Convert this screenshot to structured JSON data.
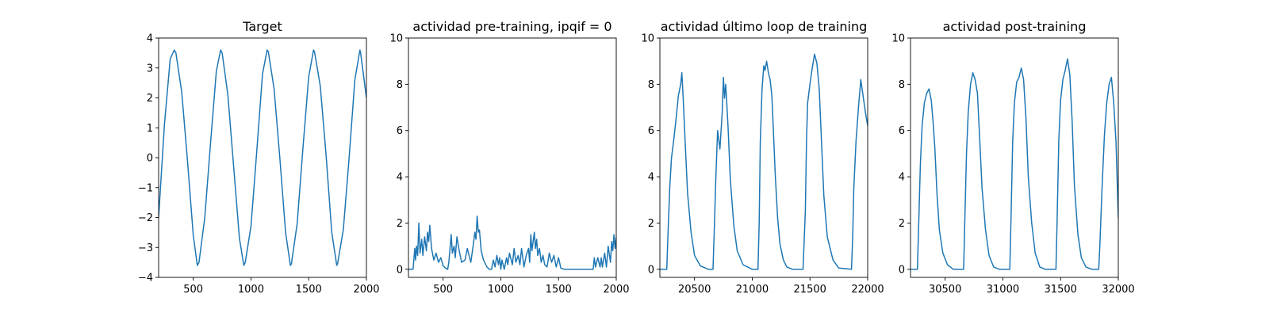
{
  "figure": {
    "background": "#ffffff",
    "line_color": "#1f77b4"
  },
  "chart_data": [
    {
      "type": "line",
      "title": "Target",
      "xlim": [
        200,
        2000
      ],
      "ylim": [
        -4,
        4
      ],
      "xticks": [
        500,
        1000,
        1500,
        2000
      ],
      "xtick_labels": [
        "500",
        "1000",
        "1500",
        "2000"
      ],
      "yticks": [
        -4,
        -3,
        -2,
        -1,
        0,
        1,
        2,
        3,
        4
      ],
      "ytick_labels": [
        "−4",
        "−3",
        "−2",
        "−1",
        "0",
        "1",
        "2",
        "3",
        "4"
      ],
      "x": [
        200,
        250,
        300,
        335,
        350,
        400,
        450,
        500,
        535,
        550,
        600,
        650,
        700,
        737,
        750,
        800,
        850,
        900,
        938,
        950,
        1000,
        1050,
        1100,
        1140,
        1150,
        1200,
        1250,
        1300,
        1341,
        1350,
        1400,
        1450,
        1500,
        1542,
        1550,
        1600,
        1650,
        1700,
        1743,
        1750,
        1800,
        1850,
        1900,
        1944,
        1950,
        2000
      ],
      "values": [
        -2.0,
        1.1,
        3.3,
        3.6,
        3.5,
        2.2,
        -0.1,
        -2.6,
        -3.6,
        -3.5,
        -2.0,
        0.5,
        2.9,
        3.6,
        3.5,
        2.1,
        -0.3,
        -2.7,
        -3.6,
        -3.5,
        -2.3,
        0.2,
        2.8,
        3.6,
        3.55,
        2.3,
        0.0,
        -2.5,
        -3.6,
        -3.55,
        -2.2,
        0.3,
        2.7,
        3.6,
        3.55,
        2.4,
        0.1,
        -2.5,
        -3.6,
        -3.55,
        -2.4,
        0.0,
        2.6,
        3.6,
        3.5,
        2.0
      ]
    },
    {
      "type": "line",
      "title": "actividad pre-training, ipqif = 0",
      "xlim": [
        200,
        2000
      ],
      "ylim": [
        -0.35,
        10
      ],
      "xticks": [
        500,
        1000,
        1500,
        2000
      ],
      "xtick_labels": [
        "500",
        "1000",
        "1500",
        "2000"
      ],
      "yticks": [
        0,
        2,
        4,
        6,
        8,
        10
      ],
      "ytick_labels": [
        "0",
        "2",
        "4",
        "6",
        "8",
        "10"
      ],
      "x": [
        200,
        240,
        255,
        262,
        270,
        280,
        290,
        300,
        315,
        325,
        340,
        355,
        365,
        375,
        385,
        400,
        420,
        440,
        460,
        480,
        500,
        520,
        540,
        550,
        560,
        570,
        580,
        595,
        605,
        620,
        640,
        660,
        690,
        710,
        740,
        760,
        775,
        785,
        795,
        805,
        815,
        830,
        850,
        880,
        900,
        920,
        935,
        950,
        965,
        980,
        990,
        1000,
        1010,
        1030,
        1050,
        1060,
        1075,
        1100,
        1115,
        1130,
        1150,
        1165,
        1180,
        1200,
        1220,
        1240,
        1250,
        1260,
        1270,
        1290,
        1300,
        1310,
        1320,
        1335,
        1350,
        1365,
        1380,
        1400,
        1420,
        1440,
        1460,
        1480,
        1500,
        1520,
        1550,
        1700,
        1800,
        1810,
        1820,
        1840,
        1860,
        1870,
        1880,
        1900,
        1915,
        1930,
        1950,
        1960,
        1970,
        1980,
        1990,
        2000
      ],
      "values": [
        0,
        0,
        0.9,
        0.4,
        1.0,
        0.6,
        2.0,
        0.7,
        1.3,
        0.6,
        1.4,
        0.8,
        1.6,
        1.2,
        1.9,
        0.9,
        0.4,
        0.7,
        0.3,
        0.5,
        0.15,
        0.05,
        0,
        0.3,
        0.9,
        1.5,
        0.7,
        1.0,
        0.5,
        1.4,
        0.8,
        0.3,
        0.4,
        0.9,
        0.3,
        1.0,
        1.6,
        1.3,
        2.3,
        1.6,
        1.7,
        0.8,
        0.4,
        0.1,
        0,
        0,
        0.4,
        0.1,
        0.6,
        0.2,
        0.5,
        0,
        0.4,
        0,
        0.5,
        0.2,
        0.7,
        0.2,
        0.9,
        0.3,
        0.6,
        0.2,
        0.9,
        0.1,
        0.6,
        0.9,
        0.3,
        1.5,
        0.8,
        1.6,
        0.9,
        1.3,
        0.6,
        0.9,
        0.3,
        0.6,
        0.2,
        0.1,
        0.7,
        0.3,
        0.6,
        0.1,
        0.5,
        0.05,
        0,
        0,
        0,
        0.5,
        0.1,
        0.5,
        0.1,
        0.5,
        0.1,
        0.7,
        0.1,
        1.0,
        0.3,
        1.2,
        0.8,
        1.5,
        0.9,
        1.4
      ]
    },
    {
      "type": "line",
      "title": "actividad último loop de training",
      "xlim": [
        20200,
        22000
      ],
      "ylim": [
        -0.35,
        10
      ],
      "xticks": [
        20500,
        21000,
        21500,
        22000
      ],
      "xtick_labels": [
        "20500",
        "21000",
        "21500",
        "22000"
      ],
      "yticks": [
        0,
        2,
        4,
        6,
        8,
        10
      ],
      "ytick_labels": [
        "0",
        "2",
        "4",
        "6",
        "8",
        "10"
      ],
      "x": [
        20200,
        20260,
        20270,
        20285,
        20300,
        20320,
        20340,
        20360,
        20380,
        20390,
        20400,
        20420,
        20440,
        20470,
        20500,
        20550,
        20620,
        20660,
        20670,
        20685,
        20700,
        20720,
        20740,
        20750,
        20760,
        20770,
        20790,
        20810,
        20840,
        20870,
        20920,
        21000,
        21050,
        21060,
        21070,
        21085,
        21100,
        21110,
        21125,
        21140,
        21155,
        21170,
        21180,
        21200,
        21220,
        21240,
        21270,
        21300,
        21350,
        21440,
        21460,
        21470,
        21480,
        21500,
        21520,
        21540,
        21560,
        21580,
        21600,
        21620,
        21650,
        21700,
        21750,
        21860,
        21870,
        21880,
        21900,
        21920,
        21940,
        21960,
        21980,
        22000
      ],
      "values": [
        0,
        0,
        1.5,
        3.5,
        4.8,
        5.6,
        6.5,
        7.5,
        8.0,
        8.5,
        7.6,
        5.4,
        3.3,
        1.6,
        0.6,
        0.15,
        0,
        0,
        1.5,
        4.0,
        6.0,
        5.2,
        6.8,
        8.3,
        7.4,
        8.0,
        6.2,
        3.9,
        1.9,
        0.8,
        0.2,
        0,
        0,
        2.0,
        5.5,
        7.8,
        8.8,
        8.6,
        9.0,
        8.5,
        8.2,
        7.5,
        6.4,
        4.0,
        2.2,
        1.1,
        0.4,
        0.1,
        0,
        0,
        2.5,
        5.6,
        7.2,
        8.0,
        8.7,
        9.3,
        8.9,
        7.8,
        5.5,
        3.2,
        1.4,
        0.4,
        0.05,
        0,
        1.4,
        3.5,
        5.6,
        7.0,
        8.2,
        7.5,
        6.8,
        6.2
      ]
    },
    {
      "type": "line",
      "title": "actividad post-training",
      "xlim": [
        30200,
        32000
      ],
      "ylim": [
        -0.35,
        10
      ],
      "xticks": [
        30500,
        31000,
        31500,
        32000
      ],
      "xtick_labels": [
        "30500",
        "31000",
        "31500",
        "32000"
      ],
      "yticks": [
        0,
        2,
        4,
        6,
        8,
        10
      ],
      "ytick_labels": [
        "0",
        "2",
        "4",
        "6",
        "8",
        "10"
      ],
      "x": [
        30200,
        30260,
        30270,
        30285,
        30300,
        30320,
        30340,
        30360,
        30380,
        30395,
        30410,
        30430,
        30450,
        30480,
        30520,
        30570,
        30660,
        30670,
        30685,
        30700,
        30720,
        30740,
        30760,
        30780,
        30800,
        30820,
        30850,
        30880,
        30920,
        30970,
        31060,
        31070,
        31085,
        31100,
        31120,
        31140,
        31160,
        31180,
        31200,
        31220,
        31250,
        31280,
        31320,
        31370,
        31460,
        31470,
        31485,
        31500,
        31520,
        31540,
        31560,
        31580,
        31600,
        31620,
        31650,
        31680,
        31720,
        31770,
        31830,
        31840,
        31860,
        31880,
        31900,
        31920,
        31940,
        31960,
        31980,
        32000
      ],
      "values": [
        0,
        0,
        1.8,
        4.5,
        6.2,
        7.2,
        7.6,
        7.8,
        7.3,
        6.4,
        5.3,
        3.2,
        1.7,
        0.7,
        0.2,
        0,
        0,
        2.0,
        5.0,
        6.8,
        8.0,
        8.5,
        8.2,
        7.6,
        5.6,
        3.5,
        1.7,
        0.6,
        0.1,
        0,
        0,
        2.0,
        5.5,
        7.2,
        8.1,
        8.3,
        8.7,
        8.2,
        6.5,
        4.0,
        2.0,
        0.7,
        0.1,
        0,
        0,
        2.2,
        5.6,
        7.3,
        8.2,
        8.6,
        9.1,
        8.4,
        6.4,
        3.6,
        1.5,
        0.5,
        0.1,
        0,
        0,
        1.0,
        3.6,
        5.8,
        7.2,
        8.0,
        8.3,
        7.2,
        5.5,
        2.2
      ]
    }
  ]
}
